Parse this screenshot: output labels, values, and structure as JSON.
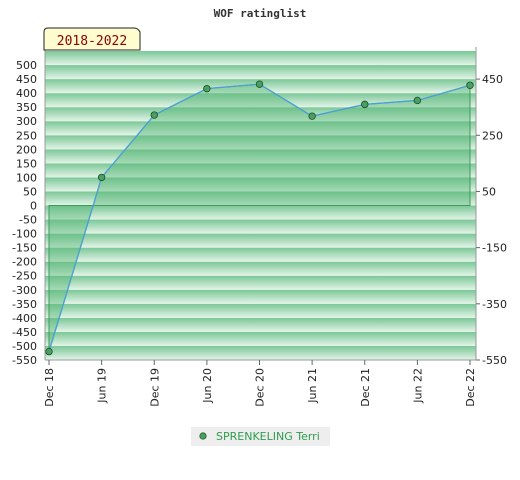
{
  "chart_data": {
    "type": "line",
    "title": "WOF ratinglist",
    "period_label": "2018-2022",
    "categories": [
      "Dec 18",
      "Jun 19",
      "Dec 19",
      "Jun 20",
      "Dec 20",
      "Jun 21",
      "Dec 21",
      "Jun 22",
      "Dec 22"
    ],
    "series": [
      {
        "name": "SPRENKELING Terri",
        "values": [
          -520,
          100,
          322,
          416,
          432,
          318,
          360,
          374,
          428
        ]
      }
    ],
    "y_left": {
      "min": -550,
      "max": 500,
      "step": 50
    },
    "y_right": {
      "ticks": [
        450,
        250,
        50,
        -150,
        -350,
        -550
      ]
    },
    "grid": true,
    "legend_position": "bottom",
    "colors": {
      "line": "#4a9fd8",
      "fill": "#5cb87a",
      "marker": "#4aa060",
      "band_dark": "#7ac796",
      "band_light": "#e4f4e8"
    }
  }
}
